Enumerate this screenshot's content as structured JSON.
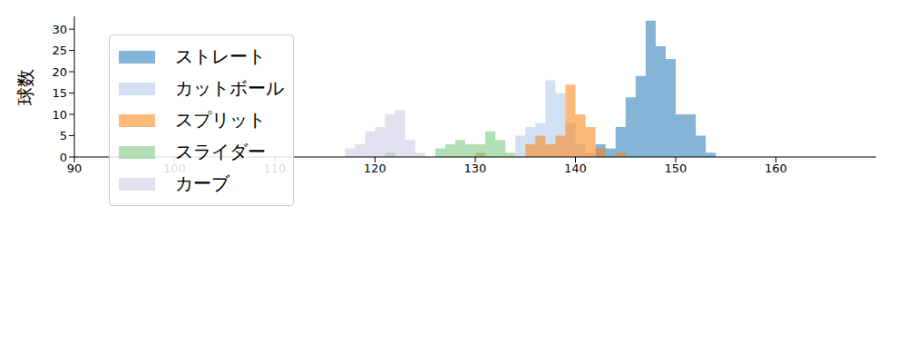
{
  "chart_data": {
    "type": "histogram",
    "y_label": "球数",
    "bins": [
      115,
      116,
      117,
      118,
      119,
      120,
      121,
      122,
      123,
      124,
      125,
      126,
      127,
      128,
      129,
      130,
      131,
      132,
      133,
      134,
      135,
      136,
      137,
      138,
      139,
      140,
      141,
      142,
      143,
      144,
      145,
      146,
      147,
      148,
      149,
      150,
      151,
      152,
      153,
      154,
      155
    ],
    "series": [
      {
        "name": "ストレート",
        "color": "#1f77b4",
        "values": [
          0,
          0,
          0,
          0,
          0,
          0,
          0,
          0,
          0,
          0,
          0,
          0,
          0,
          0,
          0,
          0,
          0,
          0,
          0,
          0,
          0,
          0,
          0,
          0,
          0,
          0,
          0,
          3,
          2,
          7,
          14,
          19,
          32,
          26,
          23,
          10,
          10,
          5,
          1,
          0
        ]
      },
      {
        "name": "カットボール",
        "color": "#aec7e8",
        "values": [
          0,
          0,
          0,
          0,
          0,
          0,
          0,
          0,
          0,
          0,
          0,
          0,
          0,
          0,
          0,
          0,
          0,
          0,
          0,
          5,
          7,
          8,
          18,
          15,
          8,
          3,
          1,
          0,
          0,
          0,
          0,
          0,
          0,
          0,
          0,
          0,
          0,
          0,
          0,
          0
        ]
      },
      {
        "name": "スプリット",
        "color": "#ff7f0e",
        "values": [
          0,
          0,
          0,
          0,
          0,
          0,
          0,
          0,
          0,
          0,
          0,
          0,
          0,
          0,
          0,
          1,
          0,
          0,
          0,
          0,
          3,
          5,
          3,
          5,
          17,
          10,
          7,
          2,
          0,
          1,
          0,
          0,
          0,
          0,
          0,
          0,
          0,
          0,
          0,
          0
        ]
      },
      {
        "name": "スライダー",
        "color": "#74c476",
        "values": [
          0,
          0,
          0,
          0,
          0,
          0,
          1,
          0,
          0,
          0,
          0,
          2,
          3,
          4,
          3,
          3,
          6,
          4,
          1,
          0,
          0,
          0,
          0,
          0,
          0,
          0,
          0,
          0,
          0,
          0,
          0,
          0,
          0,
          0,
          0,
          0,
          0,
          0,
          0,
          0
        ]
      },
      {
        "name": "カーブ",
        "color": "#cbc9e2",
        "values": [
          0,
          0,
          2,
          3,
          6,
          7,
          10,
          11,
          4,
          1,
          0,
          0,
          0,
          0,
          0,
          0,
          0,
          0,
          0,
          0,
          0,
          0,
          0,
          0,
          0,
          0,
          0,
          0,
          0,
          0,
          0,
          0,
          0,
          0,
          0,
          0,
          0,
          0,
          0,
          0
        ]
      }
    ],
    "xlim": [
      90,
      170
    ],
    "xticks": [
      90,
      100,
      110,
      120,
      130,
      140,
      150,
      160
    ],
    "ylim": [
      0,
      33
    ],
    "yticks": [
      0,
      5,
      10,
      15,
      20,
      25,
      30
    ],
    "legend": "upper left",
    "grid": false
  }
}
